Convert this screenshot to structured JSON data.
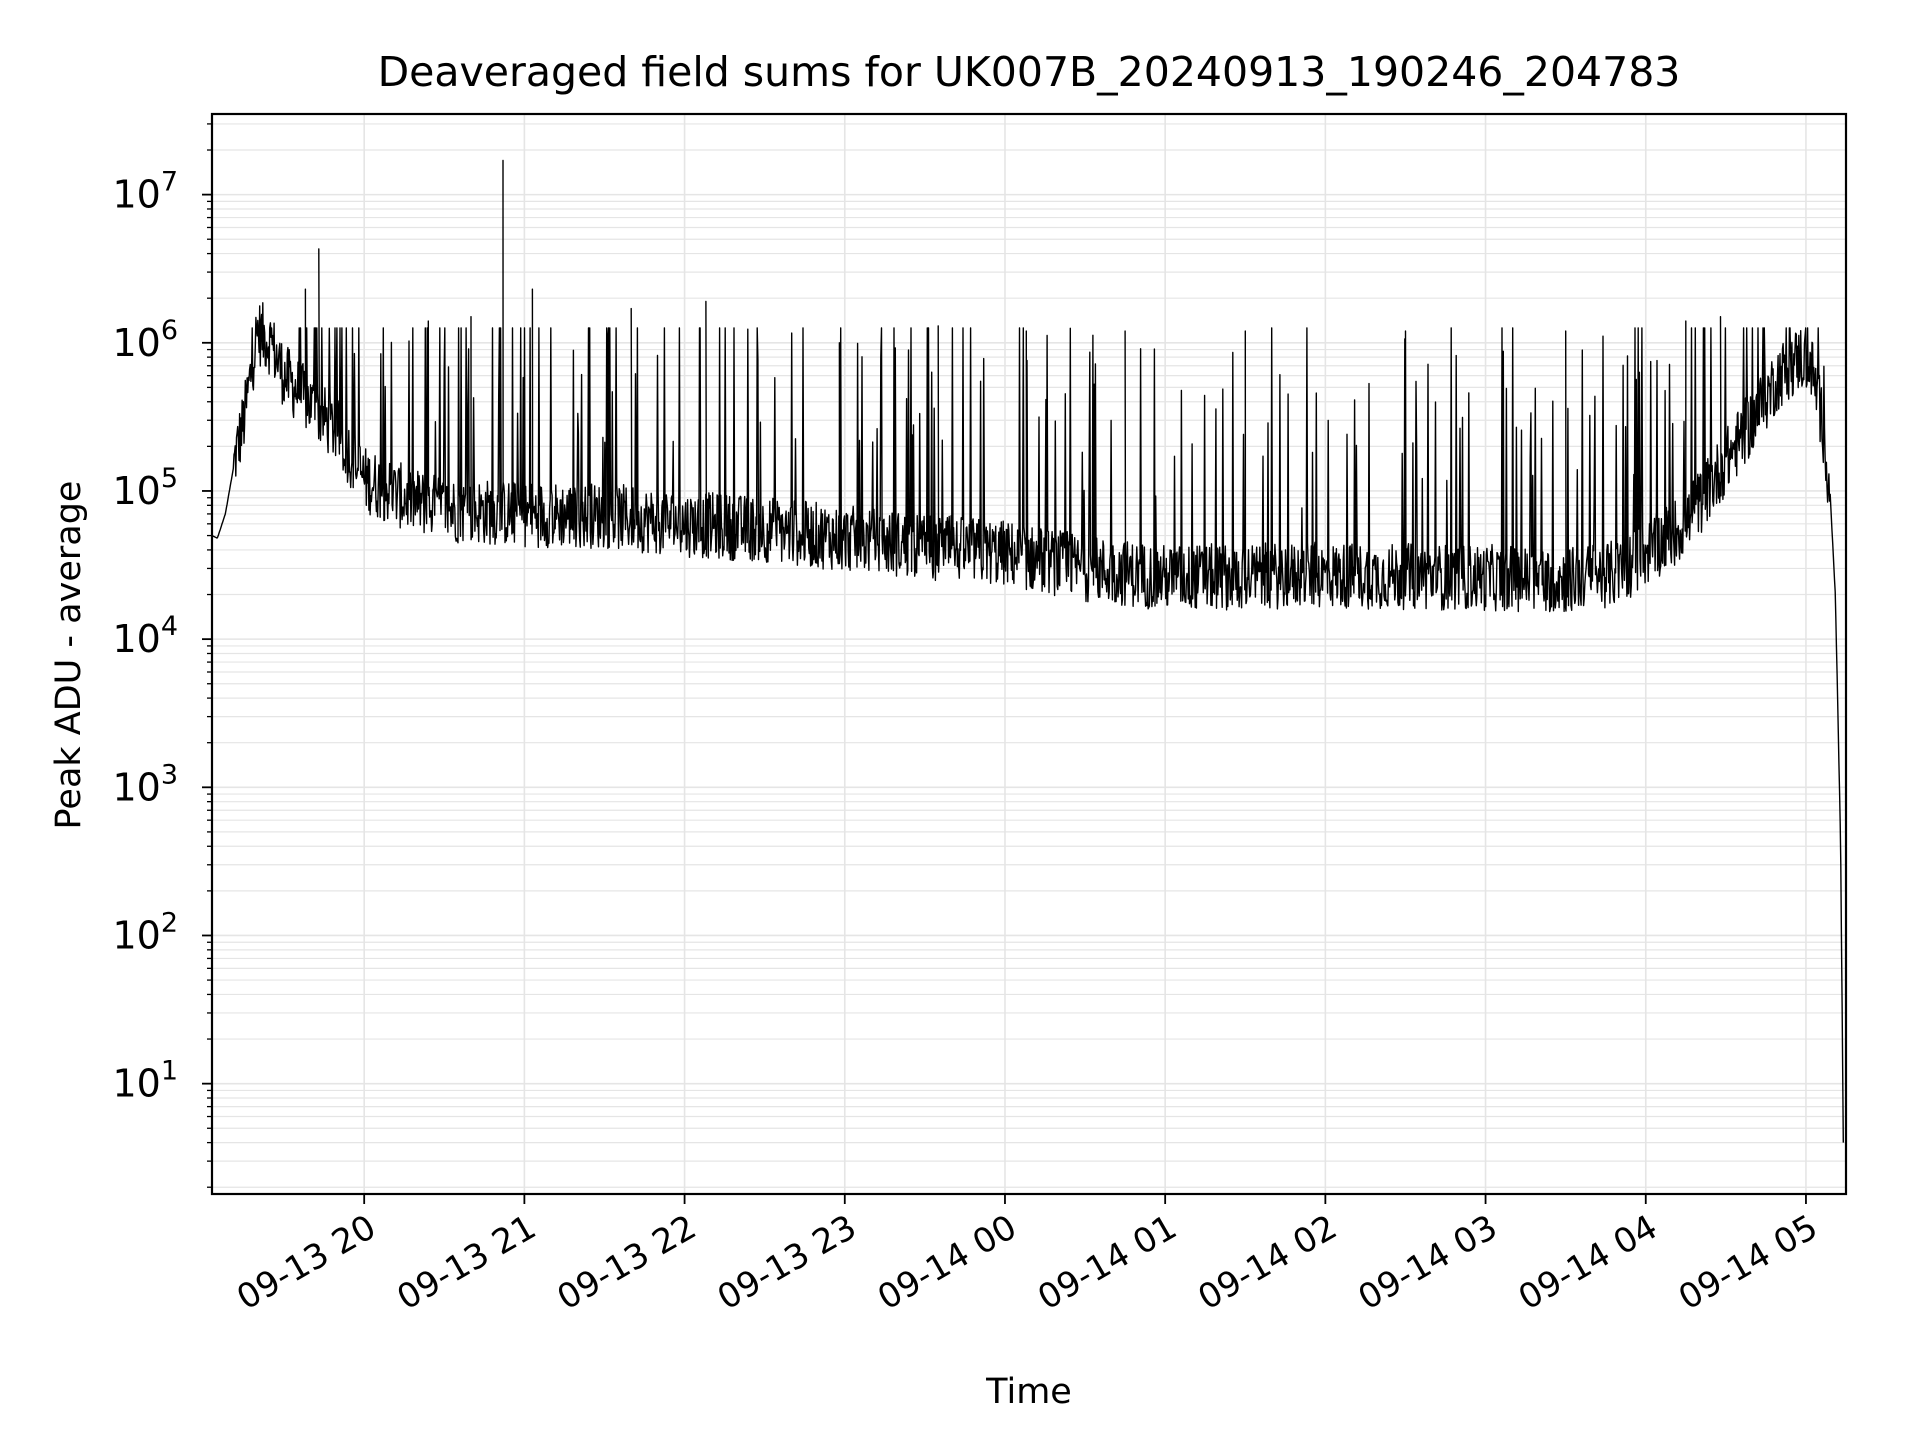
{
  "chart_data": {
    "type": "line",
    "title": "Deaveraged field sums for UK007B_20240913_190246_204783",
    "xlabel": "Time",
    "ylabel": "Peak ADU - average",
    "yscale": "log",
    "ylim": [
      1.8,
      35000000
    ],
    "xlim": [
      "2024-09-13 19:03",
      "2024-09-14 05:15"
    ],
    "grid": true,
    "line_color": "#000000",
    "grid_color": "#e5e5e5",
    "y_ticks": [
      {
        "value": 10,
        "base": "10",
        "exp": "1"
      },
      {
        "value": 100,
        "base": "10",
        "exp": "2"
      },
      {
        "value": 1000,
        "base": "10",
        "exp": "3"
      },
      {
        "value": 10000,
        "base": "10",
        "exp": "4"
      },
      {
        "value": 100000,
        "base": "10",
        "exp": "5"
      },
      {
        "value": 1000000,
        "base": "10",
        "exp": "6"
      },
      {
        "value": 10000000,
        "base": "10",
        "exp": "7"
      }
    ],
    "x_ticks": [
      {
        "time": "2024-09-13 20:00",
        "label": "09-13 20"
      },
      {
        "time": "2024-09-13 21:00",
        "label": "09-13 21"
      },
      {
        "time": "2024-09-13 22:00",
        "label": "09-13 22"
      },
      {
        "time": "2024-09-13 23:00",
        "label": "09-13 23"
      },
      {
        "time": "2024-09-14 00:00",
        "label": "09-14 00"
      },
      {
        "time": "2024-09-14 01:00",
        "label": "09-14 01"
      },
      {
        "time": "2024-09-14 02:00",
        "label": "09-14 02"
      },
      {
        "time": "2024-09-14 03:00",
        "label": "09-14 03"
      },
      {
        "time": "2024-09-14 04:00",
        "label": "09-14 04"
      },
      {
        "time": "2024-09-14 05:00",
        "label": "09-14 05"
      }
    ],
    "series": [
      {
        "x": [
          "2024-09-13 19:03",
          "2024-09-13 19:05",
          "2024-09-13 19:08",
          "2024-09-13 19:12",
          "2024-09-13 19:15",
          "2024-09-13 19:18",
          "2024-09-13 19:20",
          "2024-09-13 19:25",
          "2024-09-13 19:30",
          "2024-09-13 19:40",
          "2024-09-13 19:50",
          "2024-09-13 20:00",
          "2024-09-13 20:15",
          "2024-09-13 20:30",
          "2024-09-13 21:00",
          "2024-09-13 21:30",
          "2024-09-13 22:00",
          "2024-09-13 22:30",
          "2024-09-13 23:00",
          "2024-09-13 23:30",
          "2024-09-14 00:00",
          "2024-09-14 00:30",
          "2024-09-14 01:00",
          "2024-09-14 02:00",
          "2024-09-14 03:00",
          "2024-09-14 03:30",
          "2024-09-14 03:50",
          "2024-09-14 04:15",
          "2024-09-14 04:40",
          "2024-09-14 04:50",
          "2024-09-14 04:58",
          "2024-09-14 05:02",
          "2024-09-14 05:06",
          "2024-09-14 05:09",
          "2024-09-14 05:11",
          "2024-09-14 05:12",
          "2024-09-14 05:13",
          "2024-09-14 05:14"
        ],
        "y": [
          50000,
          48000,
          70000,
          180000,
          300000,
          700000,
          1200000,
          1000000,
          600000,
          380000,
          250000,
          120000,
          90000,
          75000,
          70000,
          68000,
          60000,
          55000,
          48000,
          42000,
          38000,
          30000,
          26000,
          27000,
          26000,
          25000,
          28000,
          60000,
          300000,
          600000,
          800000,
          700000,
          300000,
          100000,
          20000,
          3000,
          400,
          4
        ],
        "spikes": [
          {
            "x": "2024-09-13 19:38",
            "y": 2300000
          },
          {
            "x": "2024-09-13 19:43",
            "y": 4300000
          },
          {
            "x": "2024-09-13 20:24",
            "y": 1400000
          },
          {
            "x": "2024-09-13 20:40",
            "y": 1500000
          },
          {
            "x": "2024-09-13 20:52",
            "y": 17000000
          },
          {
            "x": "2024-09-13 21:03",
            "y": 2300000
          },
          {
            "x": "2024-09-13 21:40",
            "y": 1700000
          },
          {
            "x": "2024-09-13 22:08",
            "y": 1900000
          },
          {
            "x": "2024-09-13 22:58",
            "y": 1000000
          },
          {
            "x": "2024-09-13 23:35",
            "y": 1300000
          },
          {
            "x": "2024-09-14 00:08",
            "y": 1200000
          },
          {
            "x": "2024-09-14 00:45",
            "y": 1200000
          },
          {
            "x": "2024-09-14 01:30",
            "y": 1200000
          },
          {
            "x": "2024-09-14 02:30",
            "y": 1200000
          },
          {
            "x": "2024-09-14 03:30",
            "y": 1200000
          },
          {
            "x": "2024-09-14 04:15",
            "y": 1400000
          },
          {
            "x": "2024-09-14 04:28",
            "y": 1500000
          }
        ]
      }
    ]
  }
}
